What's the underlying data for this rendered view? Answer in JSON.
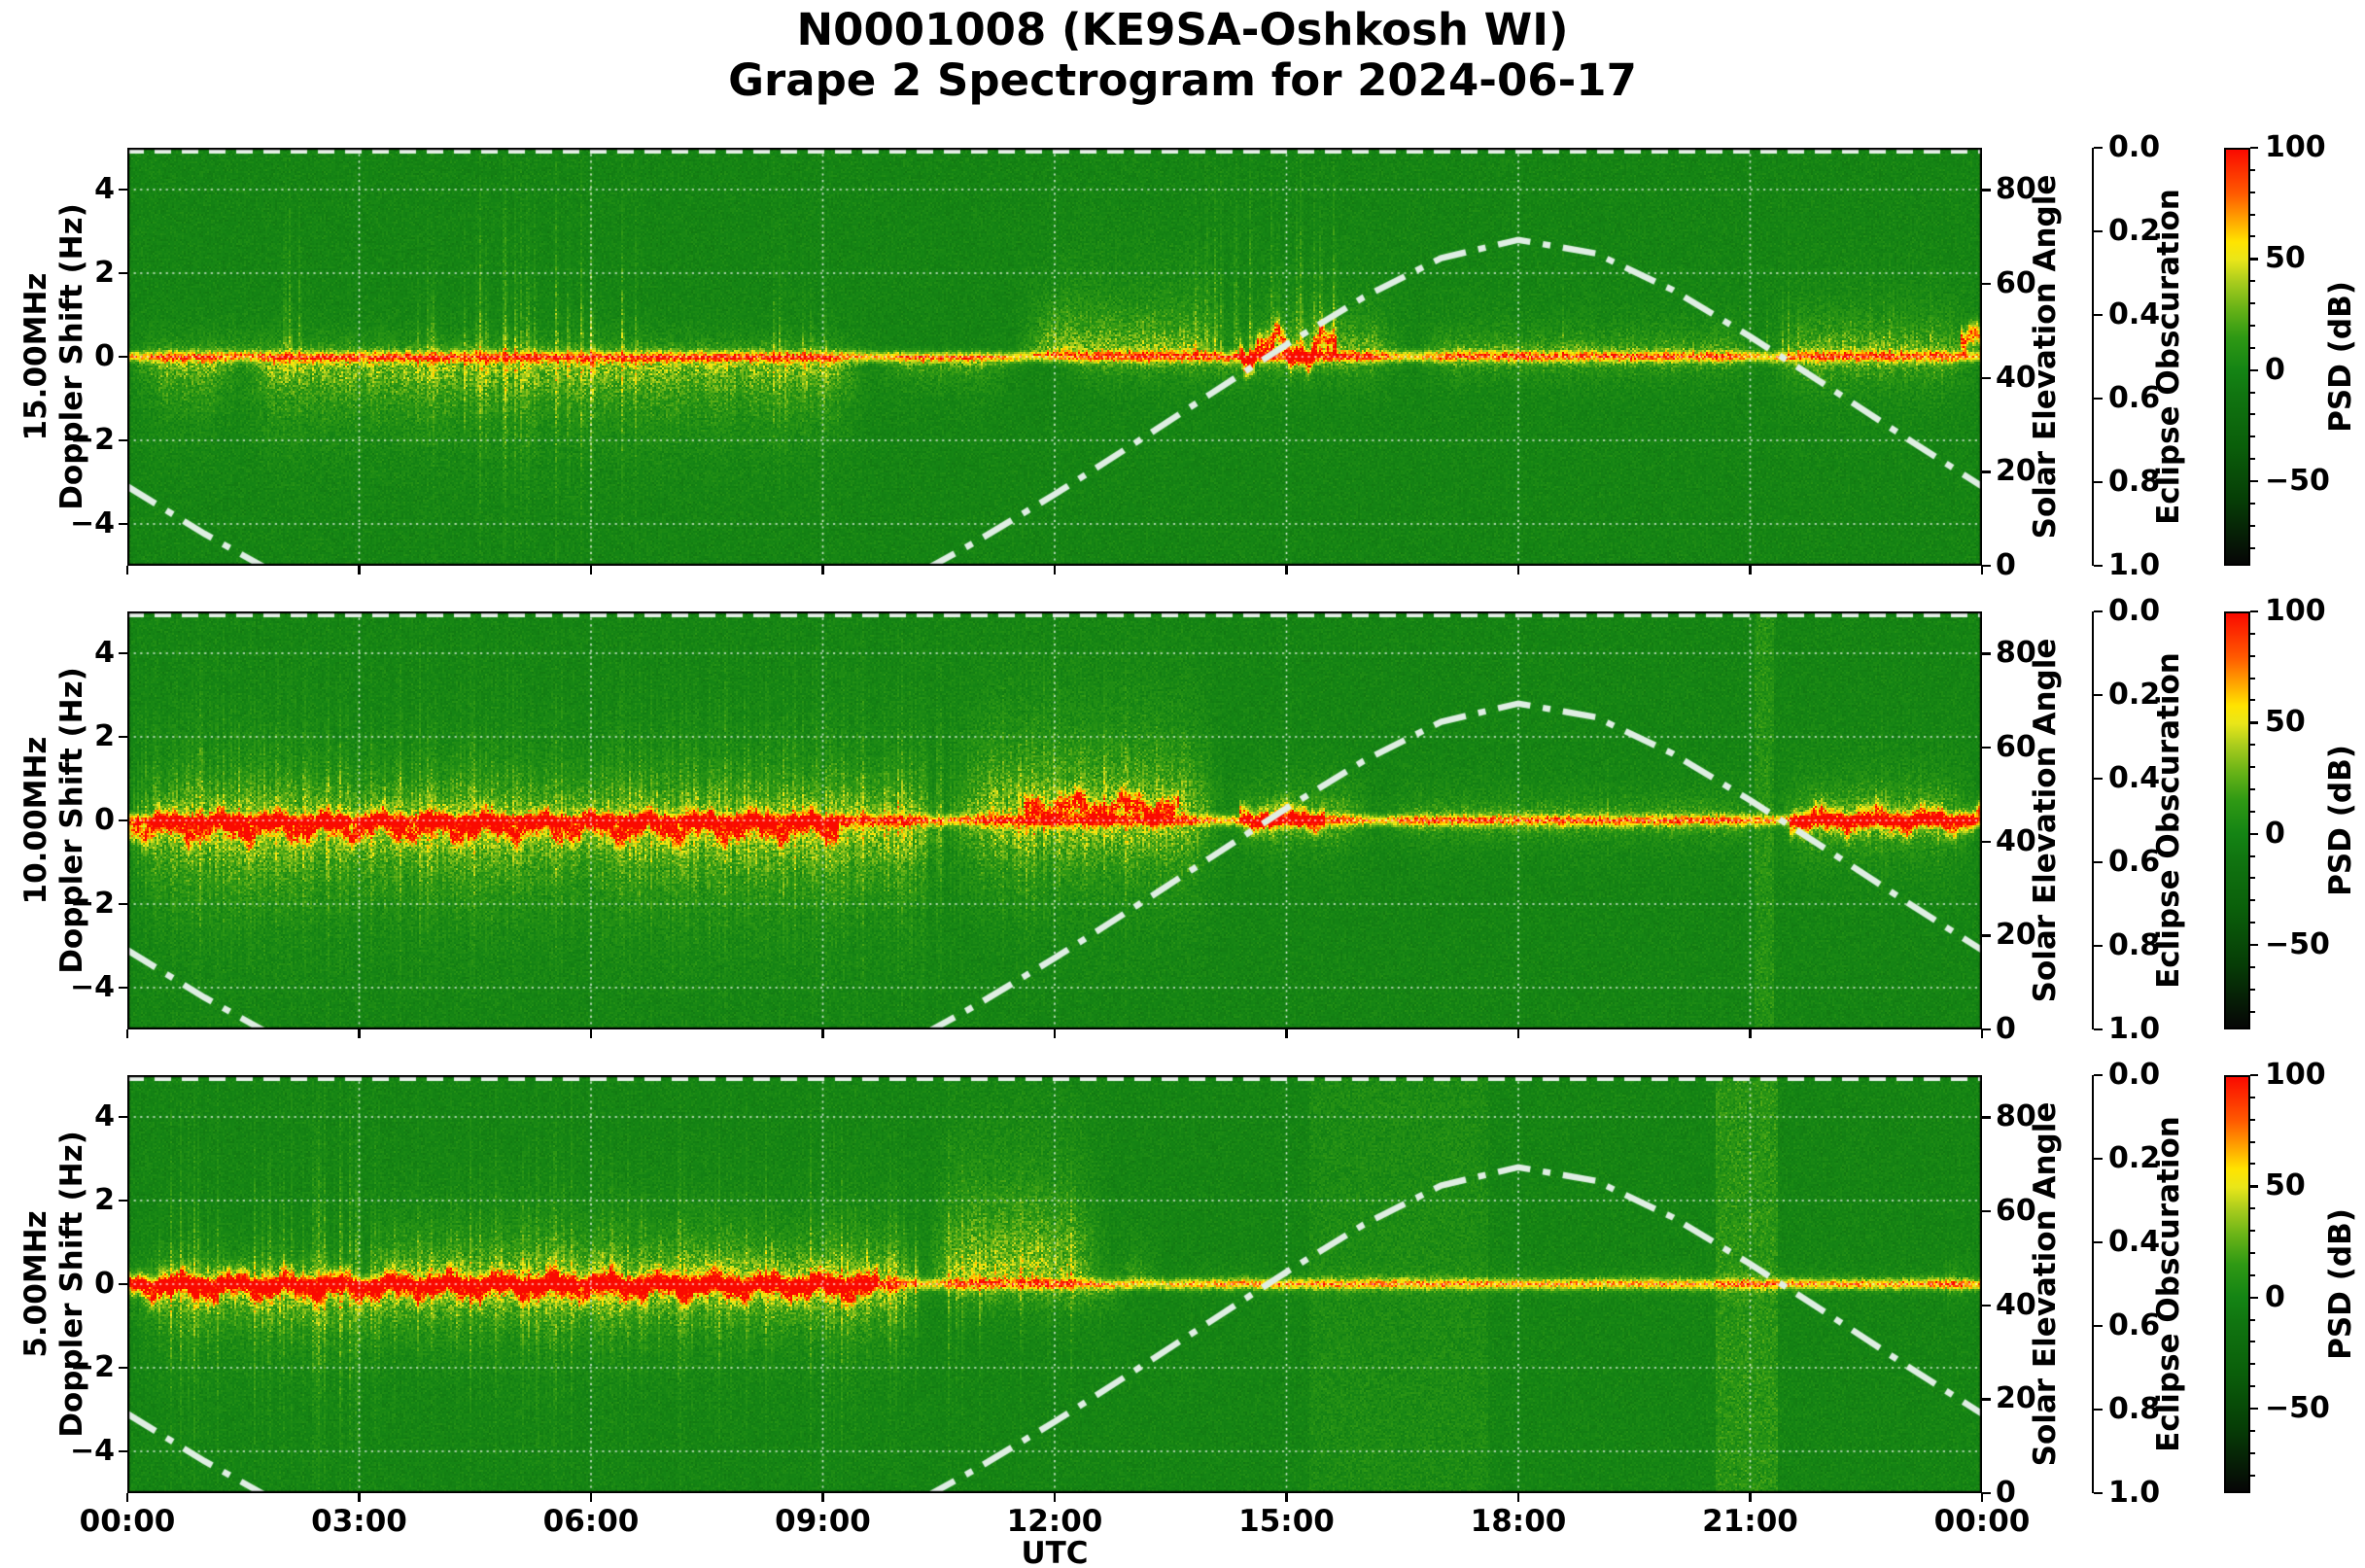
{
  "title": {
    "line1": "N0001008 (KE9SA-Oshkosh WI)",
    "line2": "Grape 2 Spectrogram for 2024-06-17"
  },
  "style": {
    "background": "#ffffff",
    "text_color": "#000000",
    "grid_color": "rgba(255,255,255,0.85)",
    "curve_color": "#dfeee3",
    "eclipse_line_color": "#e8f2ea",
    "spine_color": "#000000"
  },
  "chart_data": {
    "type": "heatmap",
    "title": "N0001008 (KE9SA-Oshkosh WI) Grape 2 Spectrogram for 2024-06-17",
    "xlabel": "UTC",
    "x_ticks": [
      "00:00",
      "03:00",
      "06:00",
      "09:00",
      "12:00",
      "15:00",
      "18:00",
      "21:00",
      "00:00"
    ],
    "x_tick_hours": [
      0,
      3,
      6,
      9,
      12,
      15,
      18,
      21,
      24
    ],
    "x_range_hours": [
      0,
      24
    ],
    "grid": true,
    "doppler_axis": {
      "ticks": [
        "4",
        "2",
        "0",
        "−2",
        "−4"
      ],
      "tick_values": [
        4,
        2,
        0,
        -2,
        -4
      ],
      "ylim": [
        -5,
        5
      ]
    },
    "solar_axis": {
      "label": "Solar Elevation Angle",
      "ticks": [
        "0",
        "20",
        "40",
        "60",
        "80"
      ],
      "tick_values": [
        0,
        20,
        40,
        60,
        80
      ],
      "lim": [
        0,
        89
      ]
    },
    "eclipse_axis": {
      "label": "Eclipse Obscuration",
      "ticks": [
        "0.0",
        "0.2",
        "0.4",
        "0.6",
        "0.8",
        "1.0"
      ],
      "tick_values": [
        0,
        0.2,
        0.4,
        0.6,
        0.8,
        1
      ],
      "inverted": true,
      "constant_value": 0
    },
    "colorbar": {
      "label": "PSD (dB)",
      "ticks": [
        "100",
        "50",
        "0",
        "−50"
      ],
      "tick_values": [
        100,
        50,
        0,
        -50
      ],
      "lim": [
        -88,
        100
      ],
      "minor_step": 10,
      "stops": [
        [
          -88,
          "#060606"
        ],
        [
          -60,
          "#063c06"
        ],
        [
          -35,
          "#0a5e0a"
        ],
        [
          -12,
          "#107410"
        ],
        [
          0,
          "#148414"
        ],
        [
          15,
          "#2f9914"
        ],
        [
          28,
          "#68b317"
        ],
        [
          40,
          "#a9cc1d"
        ],
        [
          50,
          "#e9e619"
        ],
        [
          58,
          "#ffe400"
        ],
        [
          68,
          "#ffa500"
        ],
        [
          80,
          "#ff5a00"
        ],
        [
          100,
          "#fa0a00"
        ]
      ]
    },
    "solar_elevation_curve": {
      "hours": [
        0,
        1,
        2,
        3,
        4,
        5,
        6,
        7,
        8,
        9,
        10,
        11,
        12,
        13,
        14,
        15,
        16,
        17,
        18,
        19,
        20,
        21,
        22,
        23,
        24
      ],
      "elevation_deg": [
        16.9,
        6.8,
        -2.4,
        -10.4,
        -16.8,
        -21.0,
        -22.6,
        -21.4,
        -17.6,
        -11.6,
        -3.8,
        5.3,
        15.2,
        25.7,
        36.4,
        47.1,
        57.2,
        65.5,
        69.4,
        66.5,
        58.7,
        48.8,
        38.2,
        27.4,
        16.9
      ]
    },
    "panels": [
      {
        "id": "15mhz",
        "frequency_label": "15.00MHz",
        "ylabel": "Doppler Shift (Hz)",
        "seed": 11,
        "baseline": [
          {
            "t0": 0,
            "t1": 24,
            "v": 56
          },
          {
            "t0": 12,
            "t1": 16.3,
            "v": 63
          }
        ],
        "trace": [
          {
            "t0": 14.4,
            "t1": 15.65,
            "v": 74,
            "amp": 0.55,
            "c": 0.2
          },
          {
            "t0": 23.72,
            "t1": 24,
            "v": 76,
            "amp": 0.45,
            "c": 0.3
          }
        ],
        "fuzz": [
          {
            "t0": 0,
            "t1": 1.6,
            "side": -1,
            "reach": 1.7,
            "peak": 40
          },
          {
            "t0": 1.4,
            "t1": 9.6,
            "side": -1,
            "reach": 2.1,
            "peak": 43
          },
          {
            "t0": 0,
            "t1": 9.6,
            "side": 1,
            "reach": 0.7,
            "peak": 28
          },
          {
            "t0": 9.6,
            "t1": 11.6,
            "side": -1,
            "reach": 0.9,
            "peak": 32
          },
          {
            "t0": 11.5,
            "t1": 14.3,
            "side": 1,
            "reach": 1.9,
            "peak": 43
          },
          {
            "t0": 14.3,
            "t1": 16.6,
            "side": 1,
            "reach": 1.4,
            "peak": 39
          },
          {
            "t0": 12.0,
            "t1": 16.6,
            "side": -1,
            "reach": 0.8,
            "peak": 30
          },
          {
            "t0": 16.6,
            "t1": 21.2,
            "side": 1,
            "reach": 0.9,
            "peak": 33
          },
          {
            "t0": 16.6,
            "t1": 21.2,
            "side": -1,
            "reach": 0.7,
            "peak": 29
          },
          {
            "t0": 21.2,
            "t1": 24,
            "side": 1,
            "reach": 1.4,
            "peak": 38
          },
          {
            "t0": 21.2,
            "t1": 24,
            "side": -1,
            "reach": 1.1,
            "peak": 34
          }
        ],
        "streaks": [
          {
            "t0": 1.9,
            "t1": 2.6,
            "density": 4,
            "rmin": 2,
            "rmax": 4.6,
            "s": 24,
            "side": 1
          },
          {
            "t0": 3.4,
            "t1": 4.4,
            "density": 5,
            "rmin": 1.5,
            "rmax": 3,
            "s": 20,
            "side": 0
          },
          {
            "t0": 4.5,
            "t1": 6.6,
            "density": 9,
            "rmin": 2.5,
            "rmax": 5,
            "s": 28,
            "side": 0
          },
          {
            "t0": 8.0,
            "t1": 9.5,
            "density": 4,
            "rmin": 1.5,
            "rmax": 3.5,
            "s": 20,
            "side": 0
          },
          {
            "t0": 13.8,
            "t1": 15.7,
            "density": 8,
            "rmin": 3,
            "rmax": 5,
            "s": 28,
            "side": 1
          },
          {
            "t0": 18.3,
            "t1": 19.2,
            "density": 4,
            "rmin": 1.5,
            "rmax": 2.4,
            "s": 18,
            "side": 1
          },
          {
            "t0": 21.2,
            "t1": 23.4,
            "density": 5,
            "rmin": 1.5,
            "rmax": 2.6,
            "s": 18,
            "side": 1
          }
        ],
        "light_columns": []
      },
      {
        "id": "10mhz",
        "frequency_label": "10.00MHz",
        "ylabel": "Doppler Shift (Hz)",
        "seed": 22,
        "baseline": [
          {
            "t0": 0,
            "t1": 24,
            "v": 58
          }
        ],
        "trace": [
          {
            "t0": 0,
            "t1": 9.2,
            "v": 72,
            "amp": 0.3,
            "c": -0.15
          },
          {
            "t0": 11.6,
            "t1": 13.6,
            "v": 69,
            "amp": 0.3,
            "c": 0.3
          },
          {
            "t0": 14.4,
            "t1": 15.5,
            "v": 63,
            "amp": 0.2,
            "c": 0.05
          },
          {
            "t0": 21.5,
            "t1": 24,
            "v": 64,
            "amp": 0.25,
            "c": 0
          }
        ],
        "fuzz": [
          {
            "t0": 0,
            "t1": 10.6,
            "side": -1,
            "reach": 2.4,
            "peak": 45
          },
          {
            "t0": 0,
            "t1": 10.6,
            "side": 1,
            "reach": 1.6,
            "peak": 37
          },
          {
            "t0": 10.6,
            "t1": 14.2,
            "side": 1,
            "reach": 2.8,
            "peak": 46
          },
          {
            "t0": 10.6,
            "t1": 14.2,
            "side": -1,
            "reach": 2.2,
            "peak": 43
          },
          {
            "t0": 14.2,
            "t1": 16.2,
            "side": 1,
            "reach": 1.2,
            "peak": 35
          },
          {
            "t0": 14.2,
            "t1": 16.2,
            "side": -1,
            "reach": 1.0,
            "peak": 33
          },
          {
            "t0": 16.2,
            "t1": 21.3,
            "side": 1,
            "reach": 0.8,
            "peak": 30
          },
          {
            "t0": 16.2,
            "t1": 21.3,
            "side": -1,
            "reach": 0.7,
            "peak": 29
          },
          {
            "t0": 21.3,
            "t1": 24,
            "side": 1,
            "reach": 1.3,
            "peak": 38
          },
          {
            "t0": 21.3,
            "t1": 24,
            "side": -1,
            "reach": 1.2,
            "peak": 38
          }
        ],
        "streaks": [
          {
            "t0": 0,
            "t1": 10.8,
            "density": 18,
            "rmin": 2,
            "rmax": 5,
            "s": 13,
            "side": 0
          },
          {
            "t0": 0.2,
            "t1": 10.6,
            "density": 6,
            "rmin": 2,
            "rmax": 4.8,
            "s": 22,
            "side": 0
          },
          {
            "t0": 11,
            "t1": 13.9,
            "density": 6,
            "rmin": 2,
            "rmax": 4,
            "s": 20,
            "side": 0
          },
          {
            "t0": 19,
            "t1": 20,
            "density": 2,
            "rmin": 1,
            "rmax": 2,
            "s": 13,
            "side": 0
          },
          {
            "t0": 22.5,
            "t1": 23.8,
            "density": 3,
            "rmin": 1,
            "rmax": 2.2,
            "s": 15,
            "side": 0
          }
        ],
        "light_columns": [
          {
            "t0": 21.05,
            "t1": 21.3,
            "boost": 9
          }
        ]
      },
      {
        "id": "5mhz",
        "frequency_label": "5.00MHz",
        "ylabel": "Doppler Shift (Hz)",
        "seed": 33,
        "baseline": [
          {
            "t0": 0,
            "t1": 24,
            "v": 52
          },
          {
            "t0": 23.3,
            "t1": 24,
            "v": 66
          }
        ],
        "trace": [
          {
            "t0": 0,
            "t1": 9.7,
            "v": 78,
            "amp": 0.26,
            "c": -0.05
          }
        ],
        "fuzz": [
          {
            "t0": 0,
            "t1": 10.4,
            "side": -1,
            "reach": 1.6,
            "peak": 48
          },
          {
            "t0": 0,
            "t1": 3,
            "side": 1,
            "reach": 0.9,
            "peak": 42
          },
          {
            "t0": 3,
            "t1": 10.4,
            "side": 1,
            "reach": 1.6,
            "peak": 47
          },
          {
            "t0": 10.3,
            "t1": 12.7,
            "side": 1,
            "reach": 3.4,
            "peak": 47
          },
          {
            "t0": 12.7,
            "t1": 13.4,
            "side": 1,
            "reach": 1.2,
            "peak": 36
          },
          {
            "t0": 10.4,
            "t1": 13,
            "side": -1,
            "reach": 0.9,
            "peak": 34
          },
          {
            "t0": 13.4,
            "t1": 24,
            "side": 1,
            "reach": 0.35,
            "peak": 22
          },
          {
            "t0": 13.4,
            "t1": 24,
            "side": -1,
            "reach": 0.3,
            "peak": 20
          },
          {
            "t0": 23.2,
            "t1": 24,
            "side": 1,
            "reach": 0.6,
            "peak": 32
          },
          {
            "t0": 23.2,
            "t1": 24,
            "side": -1,
            "reach": 0.5,
            "peak": 30
          }
        ],
        "streaks": [
          {
            "t0": 0.4,
            "t1": 10.4,
            "density": 9,
            "rmin": 1.5,
            "rmax": 5,
            "s": 22,
            "side": 0
          },
          {
            "t0": 2.4,
            "t1": 2.9,
            "density": 7,
            "rmin": 4,
            "rmax": 5,
            "s": 28,
            "side": 0
          },
          {
            "t0": 10.4,
            "t1": 12.4,
            "density": 5,
            "rmin": 2,
            "rmax": 4,
            "s": 20,
            "side": 0
          }
        ],
        "light_columns": [
          {
            "t0": 15.3,
            "t1": 17.6,
            "boost": 5
          },
          {
            "t0": 20.55,
            "t1": 21.35,
            "boost": 11
          }
        ]
      }
    ]
  }
}
